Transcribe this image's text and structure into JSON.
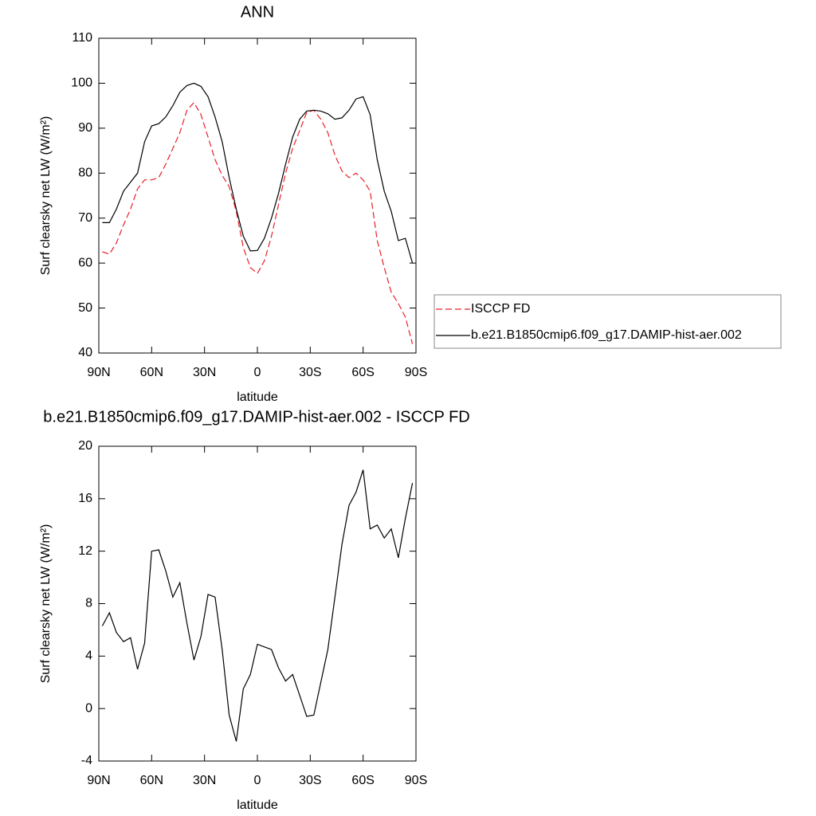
{
  "chart_data": [
    {
      "type": "line",
      "title": "ANN",
      "xlabel": "latitude",
      "ylabel": "Surf clearsky net LW (W/m²)",
      "x": [
        88,
        84,
        80,
        76,
        72,
        68,
        64,
        60,
        56,
        52,
        48,
        44,
        40,
        36,
        32,
        28,
        24,
        20,
        16,
        12,
        8,
        4,
        0,
        -4,
        -8,
        -12,
        -16,
        -20,
        -24,
        -28,
        -32,
        -36,
        -40,
        -44,
        -48,
        -52,
        -56,
        -60,
        -64,
        -68,
        -72,
        -76,
        -80,
        -84,
        -88
      ],
      "xlim": [
        90,
        -90
      ],
      "xticks": [
        {
          "value": 90,
          "label": "90N"
        },
        {
          "value": 60,
          "label": "60N"
        },
        {
          "value": 30,
          "label": "30N"
        },
        0,
        {
          "value": -30,
          "label": "30S"
        },
        {
          "value": -60,
          "label": "60S"
        },
        {
          "value": -90,
          "label": "90S"
        }
      ],
      "ylim": [
        40,
        110
      ],
      "yticks": [
        40,
        50,
        60,
        70,
        80,
        90,
        100,
        110
      ],
      "legend": "right",
      "series": [
        {
          "name": "ISCCP FD",
          "color": "#e8202a",
          "dashed": true,
          "values": [
            62.5,
            62,
            64.5,
            68.5,
            72,
            76.5,
            78.5,
            78.5,
            79,
            82,
            85.5,
            89,
            94,
            95.7,
            93,
            88,
            83,
            79.5,
            77,
            71.5,
            63.5,
            59,
            57.7,
            60.5,
            66,
            73,
            80,
            85.5,
            89.5,
            93.5,
            94,
            92,
            89,
            84,
            80.5,
            79,
            80,
            78.5,
            76,
            65,
            59,
            53.5,
            51,
            48,
            42
          ]
        },
        {
          "name": "b.e21.B1850cmip6.f09_g17.DAMIP-hist-aer.002",
          "color": "#000000",
          "dashed": false,
          "values": [
            69,
            69,
            72,
            76,
            78,
            80,
            87,
            90.5,
            91,
            92.5,
            95,
            98,
            99.5,
            100,
            99.3,
            97,
            92.5,
            87,
            79,
            72,
            66,
            62.7,
            62.8,
            65.5,
            70,
            75.5,
            82,
            88,
            92,
            93.8,
            94,
            93.8,
            93.2,
            92,
            92.3,
            94,
            96.5,
            97,
            93,
            83,
            76,
            71.5,
            65,
            65.5,
            60
          ]
        }
      ]
    },
    {
      "type": "line",
      "title": "b.e21.B1850cmip6.f09_g17.DAMIP-hist-aer.002 - ISCCP FD",
      "xlabel": "latitude",
      "ylabel": "Surf clearsky net LW (W/m²)",
      "x": [
        88,
        84,
        80,
        76,
        72,
        68,
        64,
        60,
        56,
        52,
        48,
        44,
        40,
        36,
        32,
        28,
        24,
        20,
        16,
        12,
        8,
        4,
        0,
        -4,
        -8,
        -12,
        -16,
        -20,
        -24,
        -28,
        -32,
        -36,
        -40,
        -44,
        -48,
        -52,
        -56,
        -60,
        -64,
        -68,
        -72,
        -76,
        -80,
        -84,
        -88
      ],
      "xlim": [
        90,
        -90
      ],
      "xticks": [
        {
          "value": 90,
          "label": "90N"
        },
        {
          "value": 60,
          "label": "60N"
        },
        {
          "value": 30,
          "label": "30N"
        },
        0,
        {
          "value": -30,
          "label": "30S"
        },
        {
          "value": -60,
          "label": "60S"
        },
        {
          "value": -90,
          "label": "90S"
        }
      ],
      "ylim": [
        -4,
        20
      ],
      "yticks": [
        -4,
        0,
        4,
        8,
        12,
        16,
        20
      ],
      "color": "#000000",
      "values": [
        6.3,
        7.3,
        5.8,
        5.1,
        5.4,
        3,
        5,
        12,
        12.1,
        10.5,
        8.5,
        9.6,
        6.5,
        3.7,
        5.5,
        8.7,
        8.5,
        4.5,
        -0.5,
        -2.5,
        1.5,
        2.6,
        4.9,
        4.7,
        4.5,
        3.1,
        2.1,
        2.6,
        1,
        -0.6,
        -0.5,
        2,
        4.5,
        8.5,
        12.5,
        15.5,
        16.5,
        18.2,
        13.7,
        14,
        13,
        13.7,
        11.5,
        14.5,
        17.2
      ]
    }
  ]
}
